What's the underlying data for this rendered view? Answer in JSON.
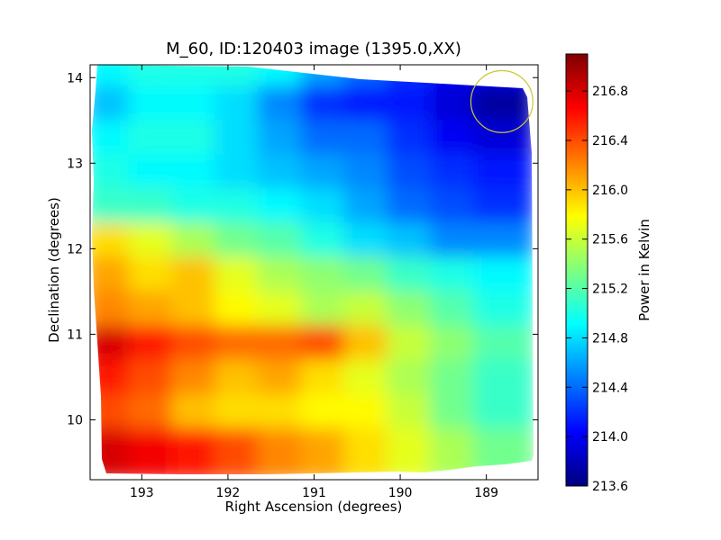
{
  "chart_data": {
    "type": "heatmap",
    "title": "M_60, ID:120403 image (1395.0,XX)",
    "xlabel": "Right Ascension (degrees)",
    "ylabel": "Declination (degrees)",
    "xlim": [
      193.6,
      188.4
    ],
    "ylim": [
      9.3,
      14.15
    ],
    "xticks": [
      193,
      192,
      191,
      190,
      189
    ],
    "yticks": [
      10,
      11,
      12,
      13,
      14
    ],
    "grid": false,
    "colormap": "jet",
    "colorbar": {
      "label": "Power in Kelvin",
      "min": 213.6,
      "max": 217.1,
      "ticks": [
        "213.6",
        "214.0",
        "214.4",
        "214.8",
        "215.2",
        "215.6",
        "216.0",
        "216.4",
        "216.8"
      ]
    },
    "annotation": {
      "type": "circle",
      "ra": 188.82,
      "dec": 13.72,
      "radius_deg": 0.36,
      "color": "#c8c832"
    },
    "data_extent": {
      "ra": [
        193.48,
        188.48
      ],
      "dec": [
        9.38,
        14.1
      ]
    },
    "values": {
      "dec_centers": [
        14.0,
        13.6,
        13.2,
        12.8,
        12.4,
        12.0,
        11.6,
        11.2,
        10.8,
        10.4,
        10.0,
        9.6
      ],
      "ra_centers": [
        193.3,
        192.8,
        192.3,
        191.8,
        191.3,
        190.8,
        190.3,
        189.8,
        189.3,
        188.8
      ],
      "grid": [
        [
          214.9,
          215.0,
          215.0,
          215.0,
          214.9,
          214.6,
          214.4,
          214.2,
          214.0,
          214.0
        ],
        [
          214.7,
          214.9,
          214.9,
          214.8,
          214.5,
          214.2,
          214.1,
          214.1,
          213.9,
          213.7
        ],
        [
          214.9,
          215.0,
          215.0,
          214.8,
          214.6,
          214.4,
          214.4,
          214.2,
          214.0,
          213.9
        ],
        [
          215.0,
          214.9,
          214.9,
          214.8,
          214.7,
          214.6,
          214.5,
          214.3,
          214.2,
          214.1
        ],
        [
          215.1,
          215.1,
          215.0,
          215.0,
          214.9,
          214.8,
          214.6,
          214.4,
          214.3,
          214.2
        ],
        [
          215.9,
          215.7,
          215.5,
          215.3,
          215.2,
          215.0,
          214.8,
          214.7,
          214.5,
          214.5
        ],
        [
          216.1,
          215.9,
          216.0,
          215.7,
          215.5,
          215.4,
          215.3,
          215.1,
          215.0,
          214.9
        ],
        [
          216.2,
          216.1,
          216.0,
          215.8,
          215.7,
          215.5,
          215.6,
          215.4,
          215.2,
          215.0
        ],
        [
          216.8,
          216.6,
          216.4,
          216.3,
          216.3,
          216.4,
          216.0,
          215.6,
          215.4,
          215.2
        ],
        [
          216.6,
          216.4,
          216.2,
          216.0,
          216.1,
          215.9,
          215.7,
          215.5,
          215.3,
          215.1
        ],
        [
          216.4,
          216.3,
          216.0,
          215.9,
          215.9,
          215.8,
          215.8,
          215.6,
          215.3,
          215.1
        ],
        [
          216.8,
          216.7,
          216.6,
          216.4,
          216.2,
          216.1,
          215.9,
          215.7,
          215.5,
          215.3
        ]
      ]
    }
  }
}
